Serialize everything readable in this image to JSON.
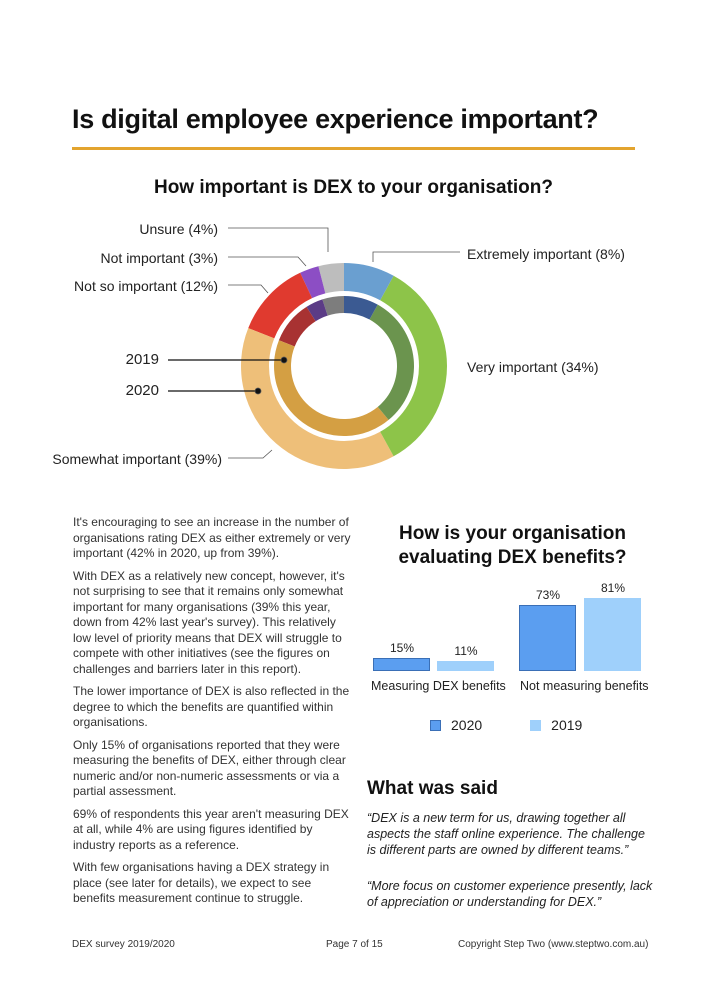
{
  "page": {
    "title": "Is digital employee experience important?",
    "accent": "#e3a42e"
  },
  "donut": {
    "title": "How important is DEX to your organisation?",
    "ring_labels": {
      "inner": "2019",
      "outer": "2020"
    }
  },
  "chart_data": [
    {
      "type": "pie",
      "title": "How important is DEX to your organisation?",
      "style": "nested donut",
      "categories": [
        "Extremely important",
        "Very important",
        "Somewhat important",
        "Not so important",
        "Not important",
        "Unsure"
      ],
      "labels": [
        "Extremely important (8%)",
        "Very important (34%)",
        "Somewhat important (39%)",
        "Not so important (12%)",
        "Not important (3%)",
        "Unsure (4%)"
      ],
      "series": [
        {
          "name": "2020",
          "ring": "outer",
          "values": [
            8,
            34,
            39,
            12,
            3,
            4
          ],
          "colors": [
            "#6a9fd0",
            "#8dc449",
            "#eebf79",
            "#e03a2f",
            "#8c4ec4",
            "#bdbdbd"
          ]
        },
        {
          "name": "2019",
          "ring": "inner",
          "values": [
            8,
            31,
            42,
            10,
            4,
            5
          ],
          "colors": [
            "#3b5a92",
            "#6b944e",
            "#d49f43",
            "#a83232",
            "#5b3c86",
            "#7d7d7d"
          ]
        }
      ]
    },
    {
      "type": "bar",
      "title": "How is your organisation evaluating DEX benefits?",
      "categories": [
        "Measuring DEX benefits",
        "Not measuring benefits"
      ],
      "series": [
        {
          "name": "2020",
          "values": [
            15,
            73
          ],
          "color": "#5b9ef0"
        },
        {
          "name": "2019",
          "values": [
            11,
            81
          ],
          "color": "#9fd0fb"
        }
      ],
      "data_labels": [
        [
          "15%",
          "11%"
        ],
        [
          "73%",
          "81%"
        ]
      ],
      "legend": "bottom",
      "ylim": [
        0,
        100
      ],
      "grid": false
    }
  ],
  "body": [
    "It's encouraging to see an increase in the number of organisations rating DEX as either extremely or very important (42% in 2020, up from 39%).",
    "With DEX as a relatively new concept, however, it's not surprising to see that it remains only somewhat important for many organisations (39% this year, down from 42% last year's survey). This relatively low level of priority means that DEX will struggle to compete with other initiatives (see the figures on challenges and barriers later in this report).",
    "The lower importance of DEX is also reflected in the degree to which the benefits are quantified within organisations.",
    "Only 15% of organisations reported that they were measuring the benefits of DEX, either through clear numeric and/or non-numeric assessments or via a partial assessment.",
    "69% of respondents this year aren't measuring DEX at all, while 4% are using figures identified by industry reports as a reference.",
    "With few organisations having a DEX strategy in place (see later for details), we expect to see benefits measurement continue to struggle."
  ],
  "said": {
    "title": "What was said",
    "quotes": [
      "“DEX is a new term for us, drawing together all aspects the staff online experience. The challenge is different parts are owned by different teams.”",
      "“More focus on customer experience presently, lack of appreciation or understanding for DEX.”"
    ]
  },
  "footer": {
    "left": "DEX survey 2019/2020",
    "center": "Page 7 of 15",
    "right": "Copyright Step Two (www.steptwo.com.au)"
  }
}
